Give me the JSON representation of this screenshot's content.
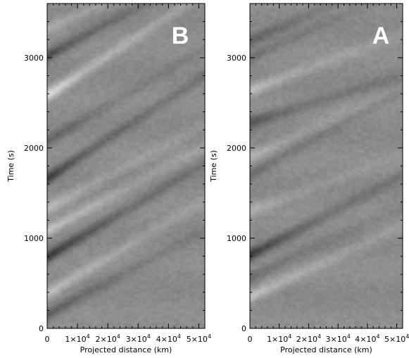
{
  "chart_data": [
    {
      "type": "heatmap",
      "panel_label": "B",
      "xlabel": "Projected distance (km)",
      "ylabel": "Time (s)",
      "xlim": [
        0,
        52000
      ],
      "ylim": [
        0,
        3600
      ],
      "x_ticks": [
        {
          "value": 0,
          "base": "0",
          "exp": ""
        },
        {
          "value": 10000,
          "base": "1×10",
          "exp": "4"
        },
        {
          "value": 20000,
          "base": "2×10",
          "exp": "4"
        },
        {
          "value": 30000,
          "base": "3×10",
          "exp": "4"
        },
        {
          "value": 40000,
          "base": "4×10",
          "exp": "4"
        },
        {
          "value": 50000,
          "base": "5×10",
          "exp": "4"
        }
      ],
      "y_ticks": [
        {
          "value": 0,
          "label": "0"
        },
        {
          "value": 1000,
          "label": "1000"
        },
        {
          "value": 2000,
          "label": "2000"
        },
        {
          "value": 3000,
          "label": "3000"
        }
      ],
      "colormap": "grayscale",
      "features": [
        {
          "kind": "dark",
          "t0": 150,
          "slope": 0.018,
          "strength": 0.5
        },
        {
          "kind": "bright",
          "t0": 380,
          "slope": 0.02,
          "strength": 0.55
        },
        {
          "kind": "dark",
          "t0": 790,
          "slope": 0.02,
          "strength": 0.85
        },
        {
          "kind": "bright",
          "t0": 1080,
          "slope": 0.018,
          "strength": 0.55
        },
        {
          "kind": "bright",
          "t0": 1330,
          "slope": 0.018,
          "strength": 0.4
        },
        {
          "kind": "dark",
          "t0": 1660,
          "slope": 0.022,
          "strength": 0.75
        },
        {
          "kind": "dark",
          "t0": 2070,
          "slope": 0.02,
          "strength": 0.4
        },
        {
          "kind": "bright",
          "t0": 2580,
          "slope": 0.022,
          "strength": 0.75
        },
        {
          "kind": "dark",
          "t0": 3020,
          "slope": 0.018,
          "strength": 0.65
        },
        {
          "kind": "bright",
          "t0": 3320,
          "slope": 0.015,
          "strength": 0.35
        }
      ]
    },
    {
      "type": "heatmap",
      "panel_label": "A",
      "xlabel": "Projected distance (km)",
      "ylabel": "Time (s)",
      "xlim": [
        0,
        52000
      ],
      "ylim": [
        0,
        3600
      ],
      "x_ticks": [
        {
          "value": 0,
          "base": "0",
          "exp": ""
        },
        {
          "value": 10000,
          "base": "1×10",
          "exp": "4"
        },
        {
          "value": 20000,
          "base": "2×10",
          "exp": "4"
        },
        {
          "value": 30000,
          "base": "3×10",
          "exp": "4"
        },
        {
          "value": 40000,
          "base": "4×10",
          "exp": "4"
        },
        {
          "value": 50000,
          "base": "5×10",
          "exp": "4"
        }
      ],
      "y_ticks": [
        {
          "value": 0,
          "label": "0"
        },
        {
          "value": 1000,
          "label": "1000"
        },
        {
          "value": 2000,
          "label": "2000"
        },
        {
          "value": 3000,
          "label": "3000"
        }
      ],
      "colormap": "grayscale",
      "features": [
        {
          "kind": "bright",
          "t0": 350,
          "slope": 0.015,
          "strength": 0.55
        },
        {
          "kind": "dark",
          "t0": 560,
          "slope": 0.015,
          "strength": 0.35
        },
        {
          "kind": "dark",
          "t0": 810,
          "slope": 0.017,
          "strength": 0.75
        },
        {
          "kind": "bright",
          "t0": 1300,
          "slope": 0.012,
          "strength": 0.3
        },
        {
          "kind": "dark",
          "t0": 1700,
          "slope": 0.018,
          "strength": 0.35
        },
        {
          "kind": "bright",
          "t0": 1900,
          "slope": 0.015,
          "strength": 0.35
        },
        {
          "kind": "dark",
          "t0": 2280,
          "slope": 0.01,
          "strength": 0.55
        },
        {
          "kind": "bright",
          "t0": 2640,
          "slope": 0.012,
          "strength": 0.5
        },
        {
          "kind": "dark",
          "t0": 3000,
          "slope": 0.015,
          "strength": 0.3
        },
        {
          "kind": "dark",
          "t0": 3180,
          "slope": 0.015,
          "strength": 0.4
        }
      ]
    }
  ]
}
